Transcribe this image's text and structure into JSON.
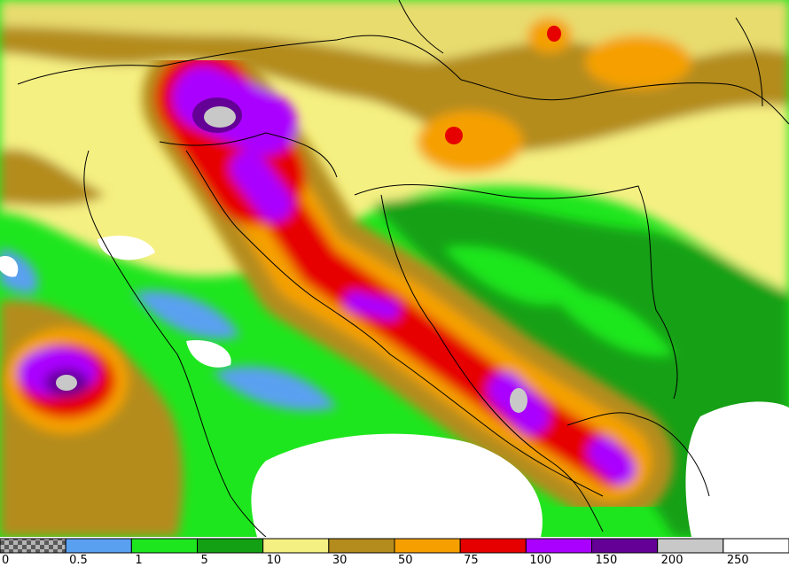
{
  "legend": {
    "labels": [
      "0",
      "0.5",
      "1",
      "5",
      "10",
      "30",
      "50",
      "75",
      "100",
      "150",
      "200",
      "250"
    ],
    "colors": [
      "#8c8c8c",
      "#5aa0f0",
      "#1ee61e",
      "#14a014",
      "#f5f082",
      "#b48c1e",
      "#f5a000",
      "#e60000",
      "#aa00ff",
      "#640096",
      "#c8c8c8",
      "#ffffff"
    ]
  }
}
